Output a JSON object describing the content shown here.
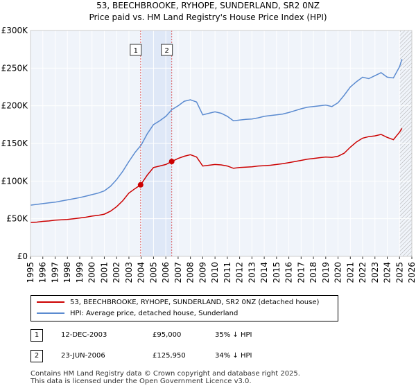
{
  "chart_data": {
    "type": "line",
    "title": "53, BEECHBROOKE, RYHOPE, SUNDERLAND, SR2 0NZ",
    "subtitle": "Price paid vs. HM Land Registry's House Price Index (HPI)",
    "xlabel": "",
    "ylabel": "",
    "xlim": [
      1995,
      2026
    ],
    "ylim": [
      0,
      300000
    ],
    "x_ticks": [
      1995,
      1996,
      1997,
      1998,
      1999,
      2000,
      2001,
      2002,
      2003,
      2004,
      2005,
      2006,
      2007,
      2008,
      2009,
      2010,
      2011,
      2012,
      2013,
      2014,
      2015,
      2016,
      2017,
      2018,
      2019,
      2020,
      2021,
      2022,
      2023,
      2024,
      2025,
      2026
    ],
    "y_ticks": [
      0,
      50000,
      100000,
      150000,
      200000,
      250000,
      300000
    ],
    "y_tick_labels": [
      "£0",
      "£50K",
      "£100K",
      "£150K",
      "£200K",
      "£250K",
      "£300K"
    ],
    "grid": true,
    "series": [
      {
        "name": "53, BEECHBROOKE, RYHOPE, SUNDERLAND, SR2 0NZ (detached house)",
        "color": "#cc0000",
        "x": [
          1995.0,
          1995.5,
          1996.0,
          1996.5,
          1997.0,
          1997.5,
          1998.0,
          1998.5,
          1999.0,
          1999.5,
          2000.0,
          2000.5,
          2001.0,
          2001.5,
          2002.0,
          2002.5,
          2003.0,
          2003.5,
          2003.95,
          2004.5,
          2005.0,
          2005.5,
          2006.0,
          2006.48,
          2007.0,
          2007.5,
          2008.0,
          2008.5,
          2009.0,
          2009.5,
          2010.0,
          2010.5,
          2011.0,
          2011.5,
          2012.0,
          2012.5,
          2013.0,
          2013.5,
          2014.0,
          2014.5,
          2015.0,
          2015.5,
          2016.0,
          2016.5,
          2017.0,
          2017.5,
          2018.0,
          2018.5,
          2019.0,
          2019.5,
          2020.0,
          2020.5,
          2021.0,
          2021.5,
          2022.0,
          2022.5,
          2023.0,
          2023.5,
          2024.0,
          2024.5,
          2025.0,
          2025.2
        ],
        "y": [
          45000,
          45500,
          46500,
          47000,
          48000,
          48500,
          49000,
          50000,
          51000,
          52000,
          53500,
          54500,
          56000,
          60000,
          66000,
          74000,
          84000,
          90000,
          95000,
          108000,
          118000,
          120000,
          122000,
          125950,
          130000,
          133000,
          135000,
          132000,
          120000,
          121000,
          122000,
          121500,
          120000,
          117000,
          118000,
          118500,
          119000,
          120000,
          120500,
          121000,
          122000,
          123000,
          124500,
          126000,
          127500,
          129000,
          130000,
          131000,
          132000,
          131500,
          133000,
          137000,
          145000,
          152000,
          157000,
          159000,
          160000,
          162000,
          158000,
          155000,
          165000,
          170000
        ]
      },
      {
        "name": "HPI: Average price, detached house, Sunderland",
        "color": "#5b8bd0",
        "x": [
          1995.0,
          1995.5,
          1996.0,
          1996.5,
          1997.0,
          1997.5,
          1998.0,
          1998.5,
          1999.0,
          1999.5,
          2000.0,
          2000.5,
          2001.0,
          2001.5,
          2002.0,
          2002.5,
          2003.0,
          2003.5,
          2004.0,
          2004.5,
          2005.0,
          2005.5,
          2006.0,
          2006.5,
          2007.0,
          2007.5,
          2008.0,
          2008.5,
          2009.0,
          2009.5,
          2010.0,
          2010.5,
          2011.0,
          2011.5,
          2012.0,
          2012.5,
          2013.0,
          2013.5,
          2014.0,
          2014.5,
          2015.0,
          2015.5,
          2016.0,
          2016.5,
          2017.0,
          2017.5,
          2018.0,
          2018.5,
          2019.0,
          2019.5,
          2020.0,
          2020.5,
          2021.0,
          2021.5,
          2022.0,
          2022.5,
          2023.0,
          2023.5,
          2024.0,
          2024.5,
          2025.0,
          2025.2
        ],
        "y": [
          68000,
          69000,
          70000,
          71000,
          72000,
          73500,
          75000,
          76500,
          78000,
          80000,
          82000,
          84000,
          87000,
          93000,
          102000,
          113000,
          126000,
          138000,
          148000,
          163000,
          175000,
          180000,
          186000,
          195000,
          200000,
          206000,
          208000,
          205000,
          188000,
          190000,
          192000,
          190000,
          186000,
          180000,
          181000,
          182000,
          182500,
          184000,
          186000,
          187000,
          188000,
          189000,
          191000,
          193500,
          196000,
          198000,
          199000,
          200000,
          201000,
          199000,
          204000,
          214000,
          225000,
          232000,
          238000,
          236000,
          240000,
          244000,
          238000,
          237000,
          252000,
          262000
        ]
      }
    ],
    "sales": [
      {
        "label": "1",
        "x": 2003.95,
        "y": 95000
      },
      {
        "label": "2",
        "x": 2006.48,
        "y": 125950
      }
    ],
    "shaded_period": [
      2003.95,
      2006.48
    ],
    "forecast_start": 2025.0,
    "legend_position": "bottom"
  },
  "transactions": [
    {
      "num": "1",
      "date": "12-DEC-2003",
      "price": "£95,000",
      "hpi": "35% ↓ HPI"
    },
    {
      "num": "2",
      "date": "23-JUN-2006",
      "price": "£125,950",
      "hpi": "34% ↓ HPI"
    }
  ],
  "footer": {
    "line1": "Contains HM Land Registry data © Crown copyright and database right 2025.",
    "line2": "This data is licensed under the Open Government Licence v3.0."
  }
}
